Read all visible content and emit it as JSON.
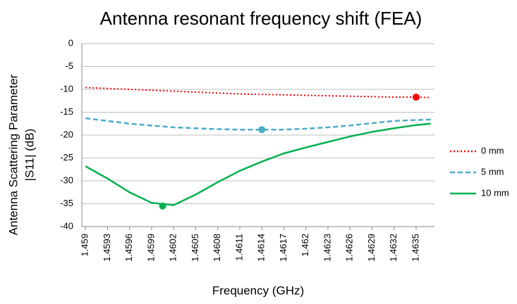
{
  "chart_data": {
    "type": "line",
    "title": "Antenna resonant frequency shift (FEA)",
    "x_label": "Frequency (GHz)",
    "y_label": [
      "Antenna Scattering Parameter",
      "|S11|  (dB)"
    ],
    "x": [
      1.459,
      1.4593,
      1.4596,
      1.4599,
      1.4602,
      1.4605,
      1.4608,
      1.4611,
      1.4614,
      1.4617,
      1.462,
      1.4623,
      1.4626,
      1.4629,
      1.4632,
      1.4635,
      1.4637
    ],
    "series": [
      {
        "name": "0 mm",
        "color": "#ff0000",
        "dash": "dotted",
        "values": [
          -9.6,
          -9.8,
          -10.0,
          -10.2,
          -10.4,
          -10.6,
          -10.8,
          -11.0,
          -11.1,
          -11.2,
          -11.3,
          -11.4,
          -11.5,
          -11.6,
          -11.7,
          -11.7,
          -11.8
        ],
        "marker": {
          "x": 1.4635,
          "y": -11.7
        }
      },
      {
        "name": "5 mm",
        "color": "#4bacc6",
        "dash": "dashed",
        "values": [
          -16.3,
          -16.9,
          -17.5,
          -17.9,
          -18.3,
          -18.5,
          -18.7,
          -18.8,
          -18.8,
          -18.8,
          -18.6,
          -18.3,
          -17.9,
          -17.4,
          -16.9,
          -16.7,
          -16.6
        ],
        "marker": {
          "x": 1.4614,
          "y": -18.8
        }
      },
      {
        "name": "10 mm",
        "color": "#00b050",
        "dash": "solid",
        "values": [
          -26.8,
          -29.5,
          -32.5,
          -34.8,
          -35.3,
          -33.0,
          -30.3,
          -27.8,
          -25.8,
          -24.0,
          -22.7,
          -21.5,
          -20.3,
          -19.3,
          -18.5,
          -17.8,
          -17.5
        ],
        "marker": {
          "x": 1.46005,
          "y": -35.5
        }
      }
    ],
    "xlim": [
      1.45895,
      1.46375
    ],
    "xticks": [
      1.459,
      1.4593,
      1.4596,
      1.4599,
      1.4602,
      1.4605,
      1.4608,
      1.4611,
      1.4614,
      1.4617,
      1.462,
      1.4623,
      1.4626,
      1.4629,
      1.4632,
      1.4635
    ],
    "ylim": [
      -40,
      0
    ],
    "yticks": [
      0,
      -5,
      -10,
      -15,
      -20,
      -25,
      -30,
      -35,
      -40
    ],
    "grid": true,
    "legend": "right"
  }
}
